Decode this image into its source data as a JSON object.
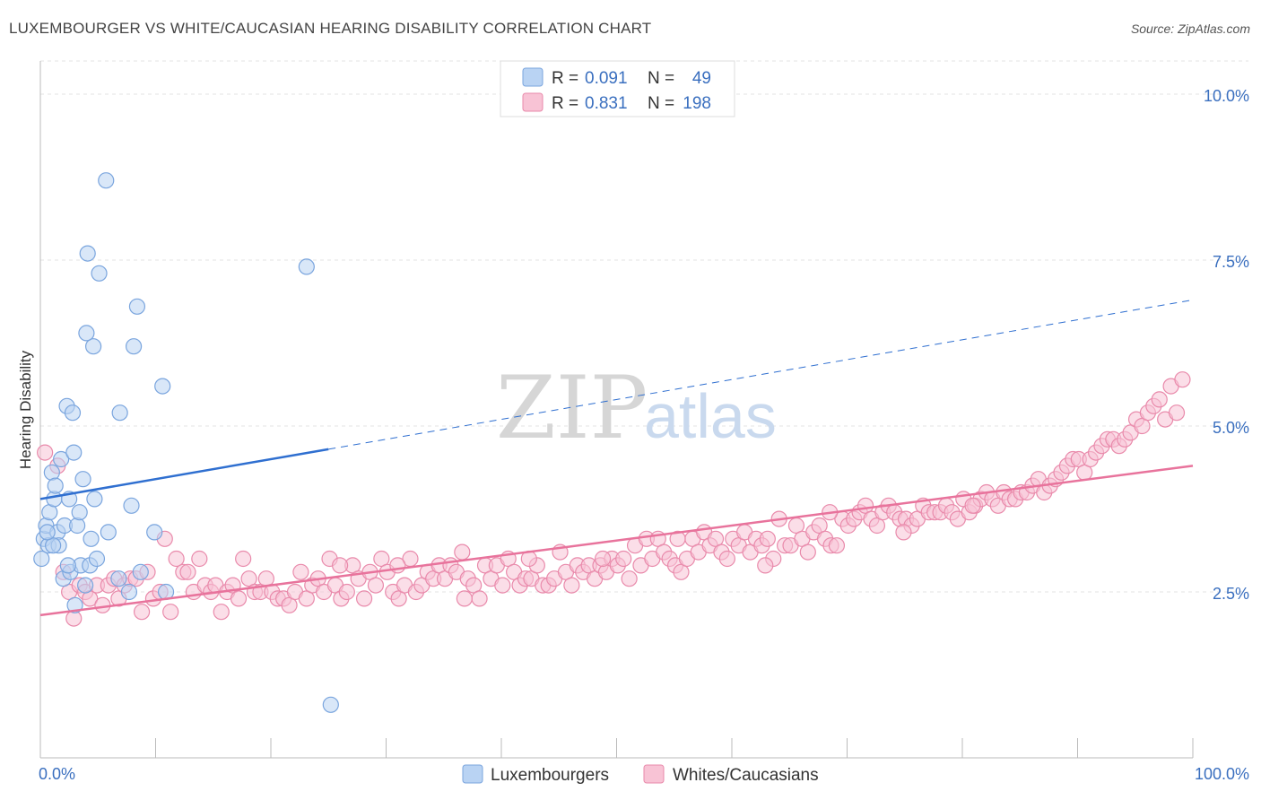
{
  "title": "LUXEMBOURGER VS WHITE/CAUCASIAN HEARING DISABILITY CORRELATION CHART",
  "source": "Source: ZipAtlas.com",
  "watermark": {
    "zip": "ZIP",
    "atlas": "atlas"
  },
  "colors": {
    "blue_fill": "#b9d3f3",
    "blue_stroke": "#7aa5de",
    "blue_line": "#2f6fd0",
    "pink_fill": "#f8c3d5",
    "pink_stroke": "#e98aab",
    "pink_line": "#e8739c",
    "grid": "#e3e3e3",
    "tick_text": "#3a6fbf"
  },
  "legend_top": {
    "rows": [
      {
        "r_label": "R =",
        "r_value": "0.091",
        "n_label": "N =",
        "n_value": "49"
      },
      {
        "r_label": "R =",
        "r_value": "0.831",
        "n_label": "N =",
        "n_value": "198"
      }
    ]
  },
  "legend_bottom": [
    "Luxembourgers",
    "Whites/Caucasians"
  ],
  "chart_data": {
    "type": "scatter",
    "title": "LUXEMBOURGER VS WHITE/CAUCASIAN HEARING DISABILITY CORRELATION CHART",
    "xlabel": "",
    "ylabel": "Hearing Disability",
    "xlim": [
      0,
      100
    ],
    "ylim": [
      0,
      10.5
    ],
    "x_tick_labels": [
      "0.0%",
      "100.0%"
    ],
    "y_ticks": [
      2.5,
      5.0,
      7.5,
      10.0
    ],
    "y_tick_labels": [
      "2.5%",
      "5.0%",
      "7.5%",
      "10.0%"
    ],
    "grid": true,
    "legend_position": "top-center",
    "series": [
      {
        "name": "Luxembourgers",
        "R": 0.091,
        "N": 49,
        "trend": {
          "x0": 0,
          "y0": 3.9,
          "x1": 25,
          "y1": 4.65,
          "x_dash_end": 100,
          "y_dash_end": 6.9
        },
        "points": [
          [
            0.1,
            3.0
          ],
          [
            0.3,
            3.3
          ],
          [
            0.5,
            3.5
          ],
          [
            0.7,
            3.2
          ],
          [
            0.8,
            3.7
          ],
          [
            1.0,
            4.3
          ],
          [
            1.2,
            3.9
          ],
          [
            1.3,
            4.1
          ],
          [
            1.5,
            3.4
          ],
          [
            1.6,
            3.2
          ],
          [
            1.8,
            4.5
          ],
          [
            2.0,
            2.7
          ],
          [
            2.1,
            3.5
          ],
          [
            2.3,
            5.3
          ],
          [
            2.5,
            3.9
          ],
          [
            2.6,
            2.8
          ],
          [
            2.8,
            5.2
          ],
          [
            2.9,
            4.6
          ],
          [
            3.0,
            2.3
          ],
          [
            3.2,
            3.5
          ],
          [
            3.4,
            3.7
          ],
          [
            3.5,
            2.9
          ],
          [
            3.7,
            4.2
          ],
          [
            3.9,
            2.6
          ],
          [
            4.1,
            7.6
          ],
          [
            4.3,
            2.9
          ],
          [
            4.4,
            3.3
          ],
          [
            4.6,
            6.2
          ],
          [
            4.7,
            3.9
          ],
          [
            4.9,
            3.0
          ],
          [
            5.7,
            8.7
          ],
          [
            5.9,
            3.4
          ],
          [
            6.8,
            2.7
          ],
          [
            6.9,
            5.2
          ],
          [
            7.7,
            2.5
          ],
          [
            7.9,
            3.8
          ],
          [
            8.1,
            6.2
          ],
          [
            8.4,
            6.8
          ],
          [
            8.7,
            2.8
          ],
          [
            9.9,
            3.4
          ],
          [
            10.6,
            5.6
          ],
          [
            10.9,
            2.5
          ],
          [
            4.0,
            6.4
          ],
          [
            5.1,
            7.3
          ],
          [
            23.1,
            7.4
          ],
          [
            25.2,
            0.8
          ],
          [
            1.1,
            3.2
          ],
          [
            0.6,
            3.4
          ],
          [
            2.4,
            2.9
          ]
        ]
      },
      {
        "name": "Whites/Caucasians",
        "R": 0.831,
        "N": 198,
        "trend": {
          "x0": 0,
          "y0": 2.15,
          "x1": 100,
          "y1": 4.4
        },
        "points": [
          [
            0.4,
            4.6
          ],
          [
            1.5,
            4.4
          ],
          [
            2.0,
            2.8
          ],
          [
            2.5,
            2.5
          ],
          [
            2.9,
            2.1
          ],
          [
            3.4,
            2.6
          ],
          [
            3.9,
            2.5
          ],
          [
            4.3,
            2.4
          ],
          [
            4.9,
            2.6
          ],
          [
            5.4,
            2.3
          ],
          [
            5.9,
            2.6
          ],
          [
            6.4,
            2.7
          ],
          [
            6.8,
            2.4
          ],
          [
            7.3,
            2.6
          ],
          [
            7.8,
            2.7
          ],
          [
            8.3,
            2.7
          ],
          [
            8.8,
            2.2
          ],
          [
            9.3,
            2.8
          ],
          [
            9.8,
            2.4
          ],
          [
            10.4,
            2.5
          ],
          [
            10.8,
            3.3
          ],
          [
            11.3,
            2.2
          ],
          [
            11.8,
            3.0
          ],
          [
            12.4,
            2.8
          ],
          [
            12.8,
            2.8
          ],
          [
            13.3,
            2.5
          ],
          [
            13.8,
            3.0
          ],
          [
            14.3,
            2.6
          ],
          [
            14.8,
            2.5
          ],
          [
            15.2,
            2.6
          ],
          [
            15.7,
            2.2
          ],
          [
            16.2,
            2.5
          ],
          [
            16.7,
            2.6
          ],
          [
            17.2,
            2.4
          ],
          [
            17.6,
            3.0
          ],
          [
            18.1,
            2.7
          ],
          [
            18.6,
            2.5
          ],
          [
            19.1,
            2.5
          ],
          [
            19.6,
            2.7
          ],
          [
            20.1,
            2.5
          ],
          [
            20.6,
            2.4
          ],
          [
            21.1,
            2.4
          ],
          [
            21.6,
            2.3
          ],
          [
            22.1,
            2.5
          ],
          [
            22.6,
            2.8
          ],
          [
            23.1,
            2.4
          ],
          [
            23.6,
            2.6
          ],
          [
            24.1,
            2.7
          ],
          [
            24.6,
            2.5
          ],
          [
            25.1,
            3.0
          ],
          [
            25.6,
            2.6
          ],
          [
            26.1,
            2.4
          ],
          [
            26.6,
            2.5
          ],
          [
            27.1,
            2.9
          ],
          [
            27.6,
            2.7
          ],
          [
            28.1,
            2.4
          ],
          [
            28.6,
            2.8
          ],
          [
            29.1,
            2.6
          ],
          [
            29.6,
            3.0
          ],
          [
            30.1,
            2.8
          ],
          [
            30.6,
            2.5
          ],
          [
            31.1,
            2.4
          ],
          [
            31.6,
            2.6
          ],
          [
            32.1,
            3.0
          ],
          [
            32.6,
            2.5
          ],
          [
            33.1,
            2.6
          ],
          [
            33.6,
            2.8
          ],
          [
            34.1,
            2.7
          ],
          [
            34.6,
            2.9
          ],
          [
            35.1,
            2.7
          ],
          [
            35.6,
            2.9
          ],
          [
            36.1,
            2.8
          ],
          [
            36.6,
            3.1
          ],
          [
            37.1,
            2.7
          ],
          [
            37.6,
            2.6
          ],
          [
            38.1,
            2.4
          ],
          [
            38.6,
            2.9
          ],
          [
            39.1,
            2.7
          ],
          [
            39.6,
            2.9
          ],
          [
            40.1,
            2.6
          ],
          [
            40.6,
            3.0
          ],
          [
            41.1,
            2.8
          ],
          [
            41.6,
            2.6
          ],
          [
            42.1,
            2.7
          ],
          [
            42.6,
            2.7
          ],
          [
            43.1,
            2.9
          ],
          [
            43.6,
            2.6
          ],
          [
            44.1,
            2.6
          ],
          [
            44.6,
            2.7
          ],
          [
            45.1,
            3.1
          ],
          [
            45.6,
            2.8
          ],
          [
            46.1,
            2.6
          ],
          [
            46.6,
            2.9
          ],
          [
            47.1,
            2.8
          ],
          [
            47.6,
            2.9
          ],
          [
            48.1,
            2.7
          ],
          [
            48.6,
            2.9
          ],
          [
            49.1,
            2.8
          ],
          [
            49.6,
            3.0
          ],
          [
            50.1,
            2.9
          ],
          [
            50.6,
            3.0
          ],
          [
            51.1,
            2.7
          ],
          [
            51.6,
            3.2
          ],
          [
            52.1,
            2.9
          ],
          [
            52.6,
            3.3
          ],
          [
            53.1,
            3.0
          ],
          [
            53.6,
            3.3
          ],
          [
            54.1,
            3.1
          ],
          [
            54.6,
            3.0
          ],
          [
            55.1,
            2.9
          ],
          [
            55.6,
            2.8
          ],
          [
            56.1,
            3.0
          ],
          [
            56.6,
            3.3
          ],
          [
            57.1,
            3.1
          ],
          [
            57.6,
            3.4
          ],
          [
            58.1,
            3.2
          ],
          [
            58.6,
            3.3
          ],
          [
            59.1,
            3.1
          ],
          [
            59.6,
            3.0
          ],
          [
            60.1,
            3.3
          ],
          [
            60.6,
            3.2
          ],
          [
            61.1,
            3.4
          ],
          [
            61.6,
            3.1
          ],
          [
            62.1,
            3.3
          ],
          [
            62.6,
            3.2
          ],
          [
            63.1,
            3.3
          ],
          [
            63.6,
            3.0
          ],
          [
            64.1,
            3.6
          ],
          [
            64.6,
            3.2
          ],
          [
            65.1,
            3.2
          ],
          [
            65.6,
            3.5
          ],
          [
            66.1,
            3.3
          ],
          [
            66.6,
            3.1
          ],
          [
            67.1,
            3.4
          ],
          [
            67.6,
            3.5
          ],
          [
            68.1,
            3.3
          ],
          [
            68.6,
            3.2
          ],
          [
            69.1,
            3.2
          ],
          [
            69.6,
            3.6
          ],
          [
            70.1,
            3.5
          ],
          [
            70.6,
            3.6
          ],
          [
            71.1,
            3.7
          ],
          [
            71.6,
            3.8
          ],
          [
            72.1,
            3.6
          ],
          [
            72.6,
            3.5
          ],
          [
            73.1,
            3.7
          ],
          [
            73.6,
            3.8
          ],
          [
            74.1,
            3.7
          ],
          [
            74.6,
            3.6
          ],
          [
            75.1,
            3.6
          ],
          [
            75.6,
            3.5
          ],
          [
            76.1,
            3.6
          ],
          [
            76.6,
            3.8
          ],
          [
            77.1,
            3.7
          ],
          [
            77.6,
            3.7
          ],
          [
            78.1,
            3.7
          ],
          [
            78.6,
            3.8
          ],
          [
            79.1,
            3.7
          ],
          [
            79.6,
            3.6
          ],
          [
            80.1,
            3.9
          ],
          [
            80.6,
            3.7
          ],
          [
            81.1,
            3.8
          ],
          [
            81.6,
            3.9
          ],
          [
            82.1,
            4.0
          ],
          [
            82.6,
            3.9
          ],
          [
            83.1,
            3.8
          ],
          [
            83.6,
            4.0
          ],
          [
            84.1,
            3.9
          ],
          [
            84.6,
            3.9
          ],
          [
            85.1,
            4.0
          ],
          [
            85.6,
            4.0
          ],
          [
            86.1,
            4.1
          ],
          [
            86.6,
            4.2
          ],
          [
            87.1,
            4.0
          ],
          [
            87.6,
            4.1
          ],
          [
            88.1,
            4.2
          ],
          [
            88.6,
            4.3
          ],
          [
            89.1,
            4.4
          ],
          [
            89.6,
            4.5
          ],
          [
            90.1,
            4.5
          ],
          [
            90.6,
            4.3
          ],
          [
            91.1,
            4.5
          ],
          [
            91.6,
            4.6
          ],
          [
            92.1,
            4.7
          ],
          [
            92.6,
            4.8
          ],
          [
            93.1,
            4.8
          ],
          [
            93.6,
            4.7
          ],
          [
            94.1,
            4.8
          ],
          [
            94.6,
            4.9
          ],
          [
            95.1,
            5.1
          ],
          [
            95.6,
            5.0
          ],
          [
            96.1,
            5.2
          ],
          [
            96.6,
            5.3
          ],
          [
            97.1,
            5.4
          ],
          [
            97.6,
            5.1
          ],
          [
            98.1,
            5.6
          ],
          [
            98.6,
            5.2
          ],
          [
            99.1,
            5.7
          ],
          [
            26.0,
            2.9
          ],
          [
            31.0,
            2.9
          ],
          [
            36.8,
            2.4
          ],
          [
            42.4,
            3.0
          ],
          [
            48.8,
            3.0
          ],
          [
            55.3,
            3.3
          ],
          [
            62.9,
            2.9
          ],
          [
            68.5,
            3.7
          ],
          [
            74.9,
            3.4
          ],
          [
            80.9,
            3.8
          ]
        ]
      }
    ]
  }
}
